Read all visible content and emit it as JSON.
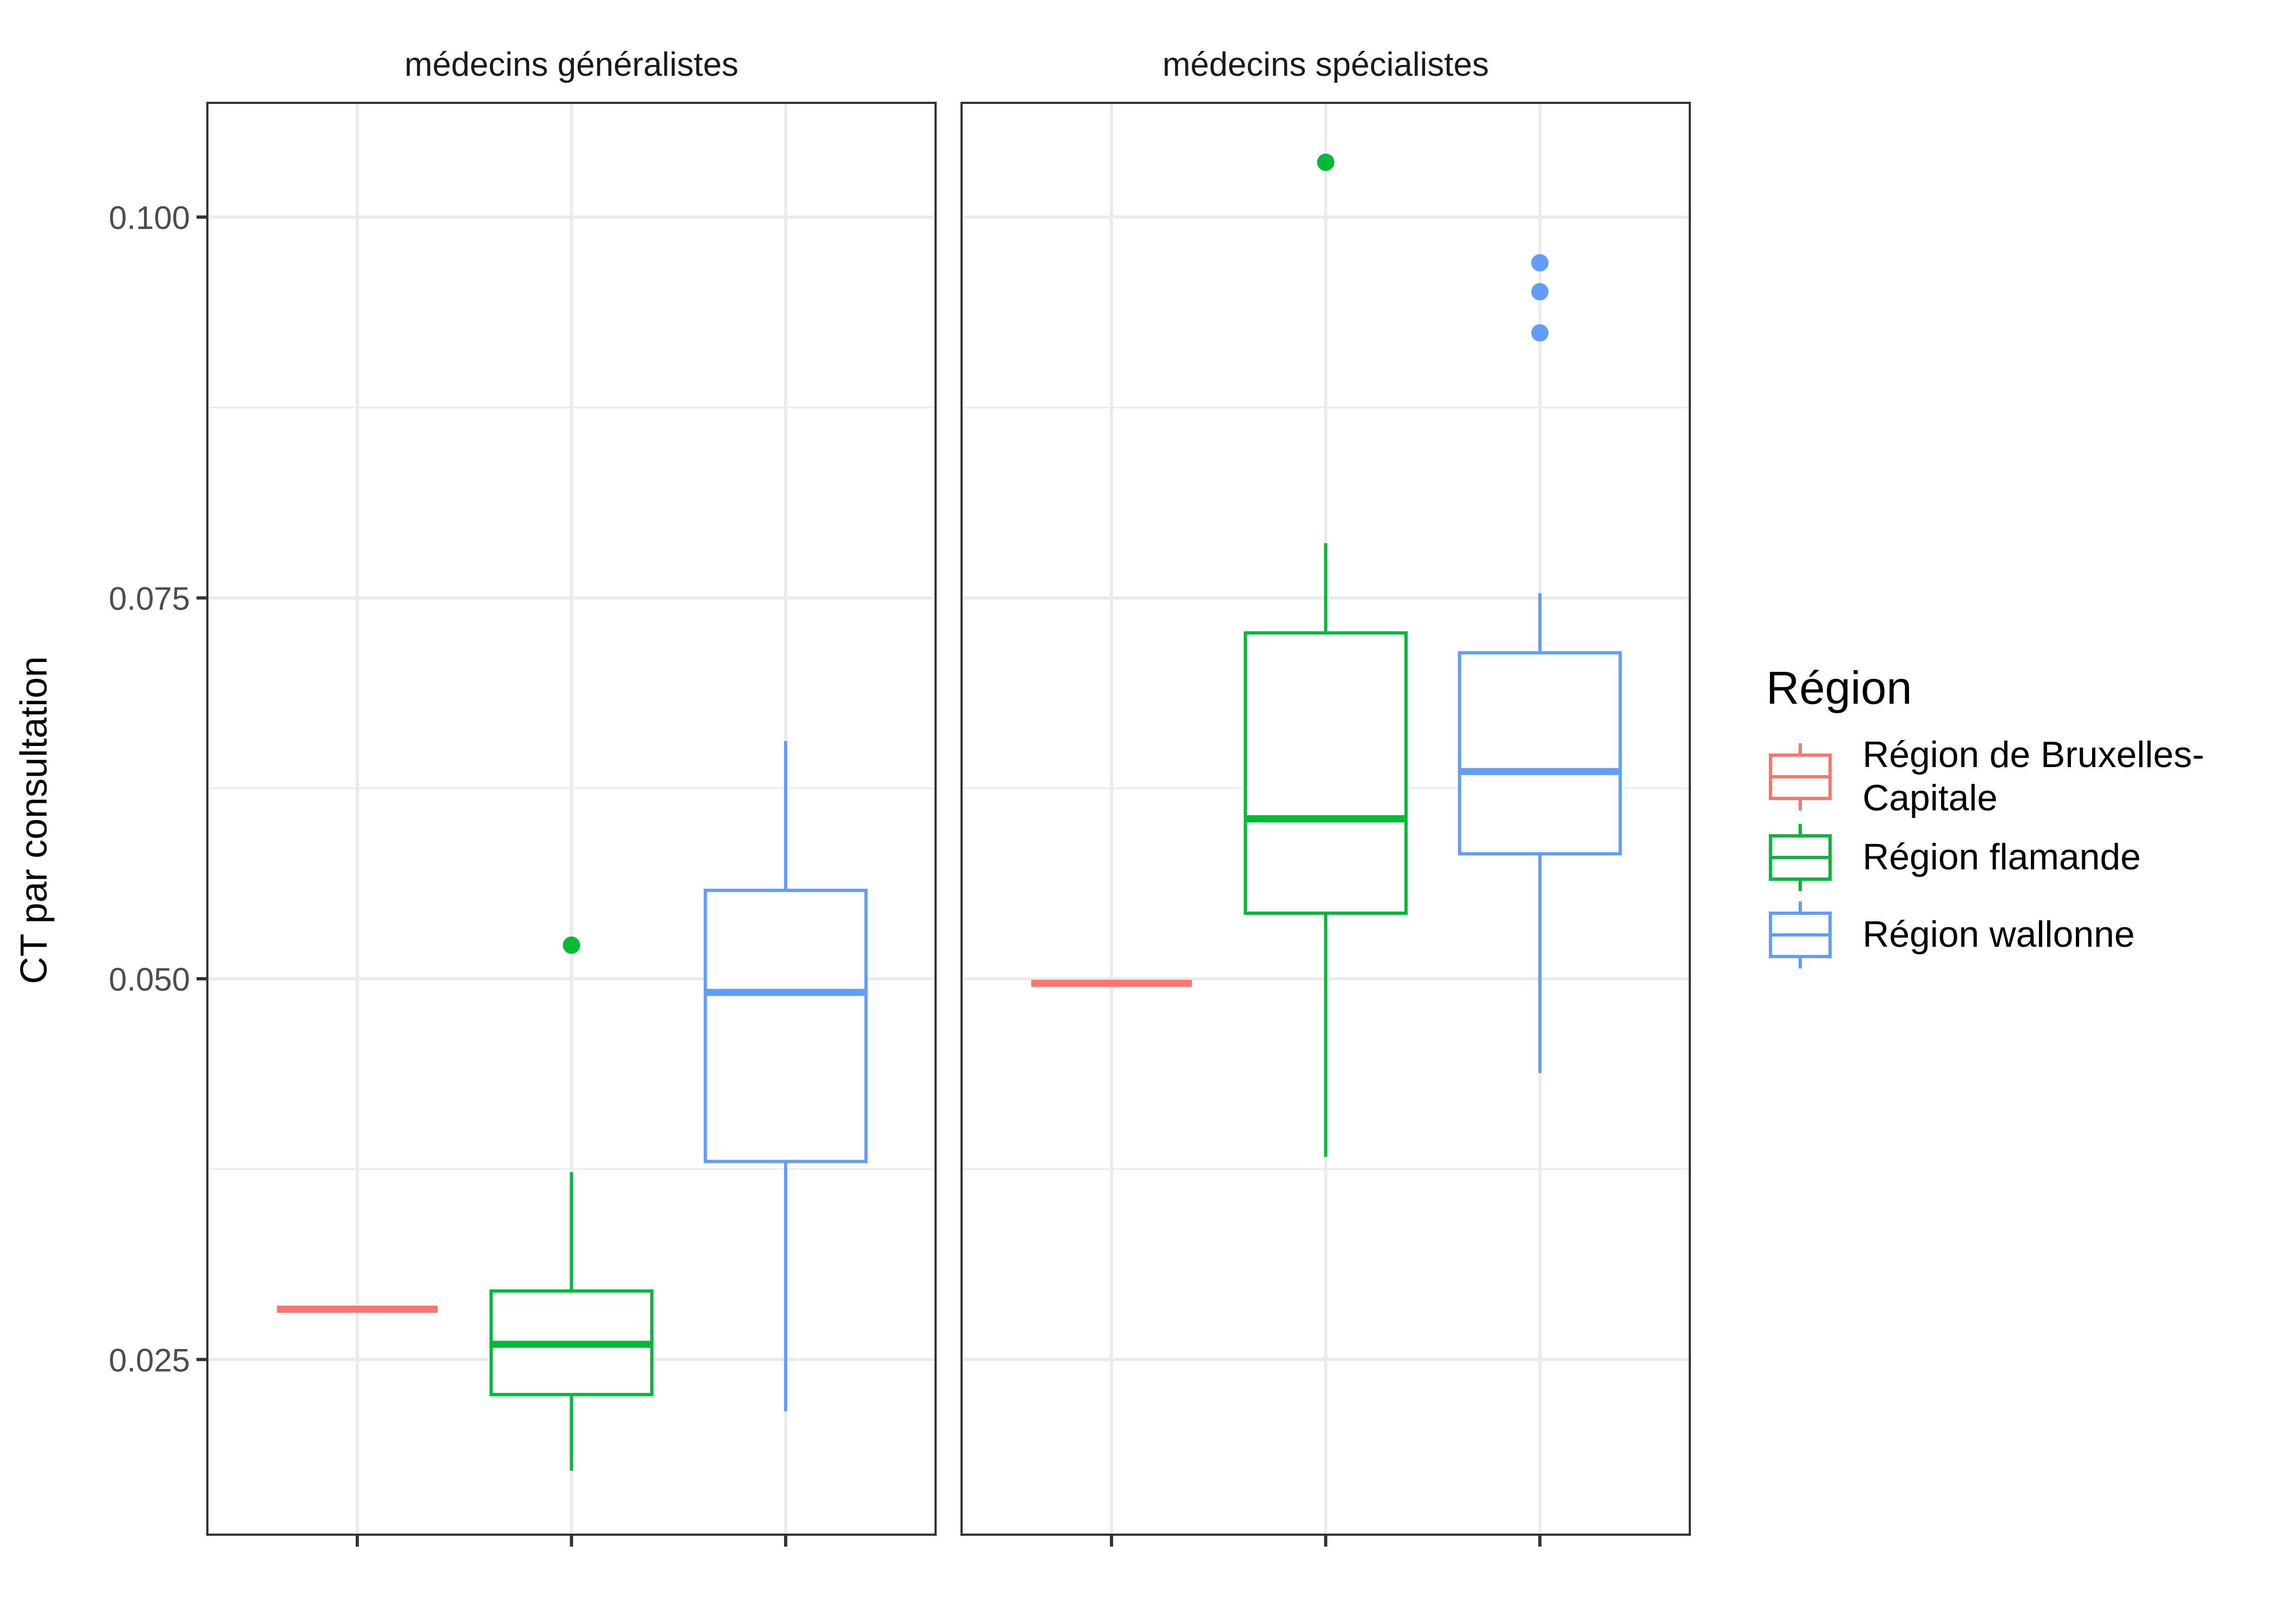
{
  "chart_data": {
    "type": "box",
    "ylabel": "CT par consultation",
    "xlabel": "",
    "ylim": [
      0.0135,
      0.1075
    ],
    "yticks": [
      "0.025",
      "0.050",
      "0.075",
      "0.100"
    ],
    "grid": true,
    "legend": {
      "title": "Région",
      "placement": "right",
      "entries": [
        {
          "label_lines": [
            "Région de Bruxelles-",
            "Capitale"
          ],
          "color": "#F8766D"
        },
        {
          "label_lines": [
            "Région flamande"
          ],
          "color": "#00BA38"
        },
        {
          "label_lines": [
            "Région wallonne"
          ],
          "color": "#619CFF"
        }
      ]
    },
    "facets": [
      {
        "title": "médecins généralistes",
        "boxes": [
          {
            "group": "Région de Bruxelles-Capitale",
            "color": "#F8766D",
            "min": 0.0283,
            "q1": 0.0283,
            "median": 0.0283,
            "q3": 0.0283,
            "max": 0.0283,
            "outliers": []
          },
          {
            "group": "Région flamande",
            "color": "#00BA38",
            "min": 0.0177,
            "q1": 0.0227,
            "median": 0.026,
            "q3": 0.0295,
            "max": 0.0373,
            "outliers": [
              0.0522
            ]
          },
          {
            "group": "Région wallonne",
            "color": "#619CFF",
            "min": 0.0216,
            "q1": 0.038,
            "median": 0.0491,
            "q3": 0.0558,
            "max": 0.0656,
            "outliers": []
          }
        ]
      },
      {
        "title": "médecins spécialistes",
        "boxes": [
          {
            "group": "Région de Bruxelles-Capitale",
            "color": "#F8766D",
            "min": 0.0497,
            "q1": 0.0497,
            "median": 0.0497,
            "q3": 0.0497,
            "max": 0.0497,
            "outliers": []
          },
          {
            "group": "Région flamande",
            "color": "#00BA38",
            "min": 0.0383,
            "q1": 0.0543,
            "median": 0.0605,
            "q3": 0.0727,
            "max": 0.0786,
            "outliers": [
              0.1036
            ]
          },
          {
            "group": "Région wallonne",
            "color": "#619CFF",
            "min": 0.0438,
            "q1": 0.0582,
            "median": 0.0636,
            "q3": 0.0714,
            "max": 0.0753,
            "outliers": [
              0.0924,
              0.0951,
              0.097
            ]
          }
        ]
      }
    ]
  }
}
